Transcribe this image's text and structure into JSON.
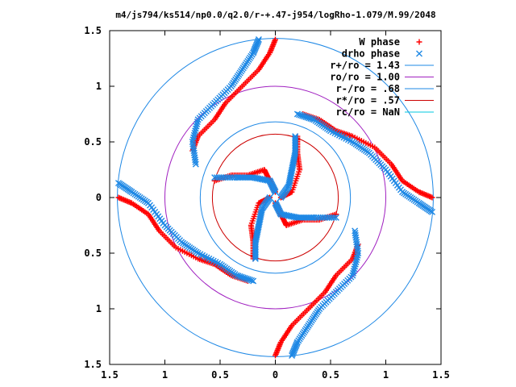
{
  "chart_data": {
    "type": "scatter",
    "title": "m4/js794/ks514/np0.0/q2.0/r-+.47-j954/logRho-1.079/M.99/2048",
    "xlim": [
      -1.5,
      1.5
    ],
    "ylim": [
      -1.5,
      1.5
    ],
    "grid": false,
    "legend_position": "top-right",
    "x_ticks": [
      {
        "v": -1.5,
        "label": "1.5"
      },
      {
        "v": -1,
        "label": "1"
      },
      {
        "v": -0.5,
        "label": "0.5"
      },
      {
        "v": 0,
        "label": "0"
      },
      {
        "v": 0.5,
        "label": "0.5"
      },
      {
        "v": 1,
        "label": "1"
      },
      {
        "v": 1.5,
        "label": "1.5"
      }
    ],
    "y_ticks": [
      {
        "v": 1.5,
        "label": "1.5"
      },
      {
        "v": 1,
        "label": "1"
      },
      {
        "v": 0.5,
        "label": "0.5"
      },
      {
        "v": 0,
        "label": "0"
      },
      {
        "v": -0.5,
        "label": "0.5"
      },
      {
        "v": -1,
        "label": "1"
      },
      {
        "v": -1.5,
        "label": "1.5"
      }
    ],
    "series": [
      {
        "name": "W phase",
        "marker": "plus",
        "color": "#ff0000",
        "arms": [
          [
            [
              0.0,
              1.42
            ],
            [
              -0.05,
              1.3
            ],
            [
              -0.15,
              1.15
            ],
            [
              -0.3,
              1.0
            ],
            [
              -0.45,
              0.85
            ],
            [
              -0.55,
              0.7
            ],
            [
              -0.7,
              0.55
            ],
            [
              -0.75,
              0.42
            ]
          ],
          [
            [
              1.42,
              0.0
            ],
            [
              1.3,
              0.05
            ],
            [
              1.15,
              0.15
            ],
            [
              1.05,
              0.3
            ],
            [
              0.9,
              0.45
            ],
            [
              0.7,
              0.55
            ],
            [
              0.55,
              0.6
            ],
            [
              0.4,
              0.7
            ],
            [
              0.25,
              0.75
            ]
          ],
          [
            [
              0.0,
              -1.42
            ],
            [
              0.05,
              -1.3
            ],
            [
              0.15,
              -1.15
            ],
            [
              0.3,
              -1.0
            ],
            [
              0.45,
              -0.85
            ],
            [
              0.55,
              -0.7
            ],
            [
              0.7,
              -0.55
            ],
            [
              0.75,
              -0.42
            ]
          ],
          [
            [
              -1.42,
              0.0
            ],
            [
              -1.3,
              -0.05
            ],
            [
              -1.15,
              -0.15
            ],
            [
              -1.05,
              -0.3
            ],
            [
              -0.9,
              -0.45
            ],
            [
              -0.7,
              -0.55
            ],
            [
              -0.55,
              -0.6
            ],
            [
              -0.4,
              -0.7
            ],
            [
              -0.25,
              -0.75
            ]
          ],
          [
            [
              0.0,
              0.05
            ],
            [
              -0.05,
              0.15
            ],
            [
              -0.1,
              0.25
            ],
            [
              -0.25,
              0.2
            ],
            [
              -0.4,
              0.2
            ],
            [
              -0.55,
              0.15
            ]
          ],
          [
            [
              0.05,
              0.0
            ],
            [
              0.15,
              0.05
            ],
            [
              0.22,
              0.25
            ],
            [
              0.2,
              0.4
            ],
            [
              0.2,
              0.55
            ]
          ],
          [
            [
              0.0,
              -0.05
            ],
            [
              0.05,
              -0.15
            ],
            [
              0.1,
              -0.25
            ],
            [
              0.25,
              -0.2
            ],
            [
              0.4,
              -0.2
            ],
            [
              0.55,
              -0.15
            ]
          ],
          [
            [
              -0.05,
              0.0
            ],
            [
              -0.15,
              -0.05
            ],
            [
              -0.22,
              -0.25
            ],
            [
              -0.2,
              -0.4
            ],
            [
              -0.2,
              -0.55
            ]
          ]
        ]
      },
      {
        "name": "drho phase",
        "marker": "cross",
        "color": "#1e88e5",
        "arms": [
          [
            [
              -0.15,
              1.42
            ],
            [
              -0.2,
              1.3
            ],
            [
              -0.3,
              1.15
            ],
            [
              -0.4,
              1.0
            ],
            [
              -0.55,
              0.85
            ],
            [
              -0.7,
              0.7
            ],
            [
              -0.75,
              0.5
            ],
            [
              -0.72,
              0.3
            ]
          ],
          [
            [
              1.42,
              -0.13
            ],
            [
              1.3,
              -0.05
            ],
            [
              1.15,
              0.05
            ],
            [
              1.0,
              0.25
            ],
            [
              0.85,
              0.4
            ],
            [
              0.7,
              0.5
            ],
            [
              0.5,
              0.6
            ],
            [
              0.35,
              0.7
            ],
            [
              0.2,
              0.75
            ]
          ],
          [
            [
              0.15,
              -1.42
            ],
            [
              0.2,
              -1.3
            ],
            [
              0.3,
              -1.15
            ],
            [
              0.4,
              -1.0
            ],
            [
              0.55,
              -0.85
            ],
            [
              0.7,
              -0.7
            ],
            [
              0.75,
              -0.5
            ],
            [
              0.72,
              -0.3
            ]
          ],
          [
            [
              -1.42,
              0.13
            ],
            [
              -1.3,
              0.05
            ],
            [
              -1.15,
              -0.05
            ],
            [
              -1.0,
              -0.25
            ],
            [
              -0.85,
              -0.4
            ],
            [
              -0.7,
              -0.5
            ],
            [
              -0.5,
              -0.6
            ],
            [
              -0.35,
              -0.7
            ],
            [
              -0.2,
              -0.75
            ]
          ],
          [
            [
              0.0,
              0.05
            ],
            [
              -0.05,
              0.15
            ],
            [
              -0.2,
              0.18
            ],
            [
              -0.35,
              0.18
            ],
            [
              -0.55,
              0.18
            ]
          ],
          [
            [
              0.05,
              0.0
            ],
            [
              0.12,
              0.1
            ],
            [
              0.15,
              0.25
            ],
            [
              0.18,
              0.4
            ],
            [
              0.18,
              0.55
            ]
          ],
          [
            [
              0.0,
              -0.05
            ],
            [
              0.05,
              -0.15
            ],
            [
              0.2,
              -0.18
            ],
            [
              0.35,
              -0.18
            ],
            [
              0.55,
              -0.18
            ]
          ],
          [
            [
              -0.05,
              0.0
            ],
            [
              -0.12,
              -0.1
            ],
            [
              -0.15,
              -0.25
            ],
            [
              -0.18,
              -0.4
            ],
            [
              -0.18,
              -0.55
            ]
          ]
        ]
      }
    ],
    "circles": [
      {
        "name": "r+/ro = 1.43",
        "r": 1.43,
        "color": "#1e88e5"
      },
      {
        "name": "ro/ro = 1.00",
        "r": 1.0,
        "color": "#a020c0"
      },
      {
        "name": "r-/ro = .68",
        "r": 0.68,
        "color": "#1e88e5"
      },
      {
        "name": "r*/ro = .57",
        "r": 0.57,
        "color": "#cc0000"
      },
      {
        "name": "rc/ro = NaN",
        "r": null,
        "color": "#00c8e0"
      }
    ],
    "legend": [
      {
        "label": "W phase",
        "marker": "plus",
        "color": "#ff0000"
      },
      {
        "label": "drho phase",
        "marker": "cross",
        "color": "#1e88e5"
      },
      {
        "label": "r+/ro = 1.43",
        "marker": "line",
        "color": "#1e88e5"
      },
      {
        "label": "ro/ro = 1.00",
        "marker": "line",
        "color": "#a020c0"
      },
      {
        "label": "r-/ro = .68",
        "marker": "line",
        "color": "#1e88e5"
      },
      {
        "label": "r*/ro = .57",
        "marker": "line",
        "color": "#cc0000"
      },
      {
        "label": "rc/ro = NaN",
        "marker": "line",
        "color": "#00c8e0"
      }
    ]
  }
}
